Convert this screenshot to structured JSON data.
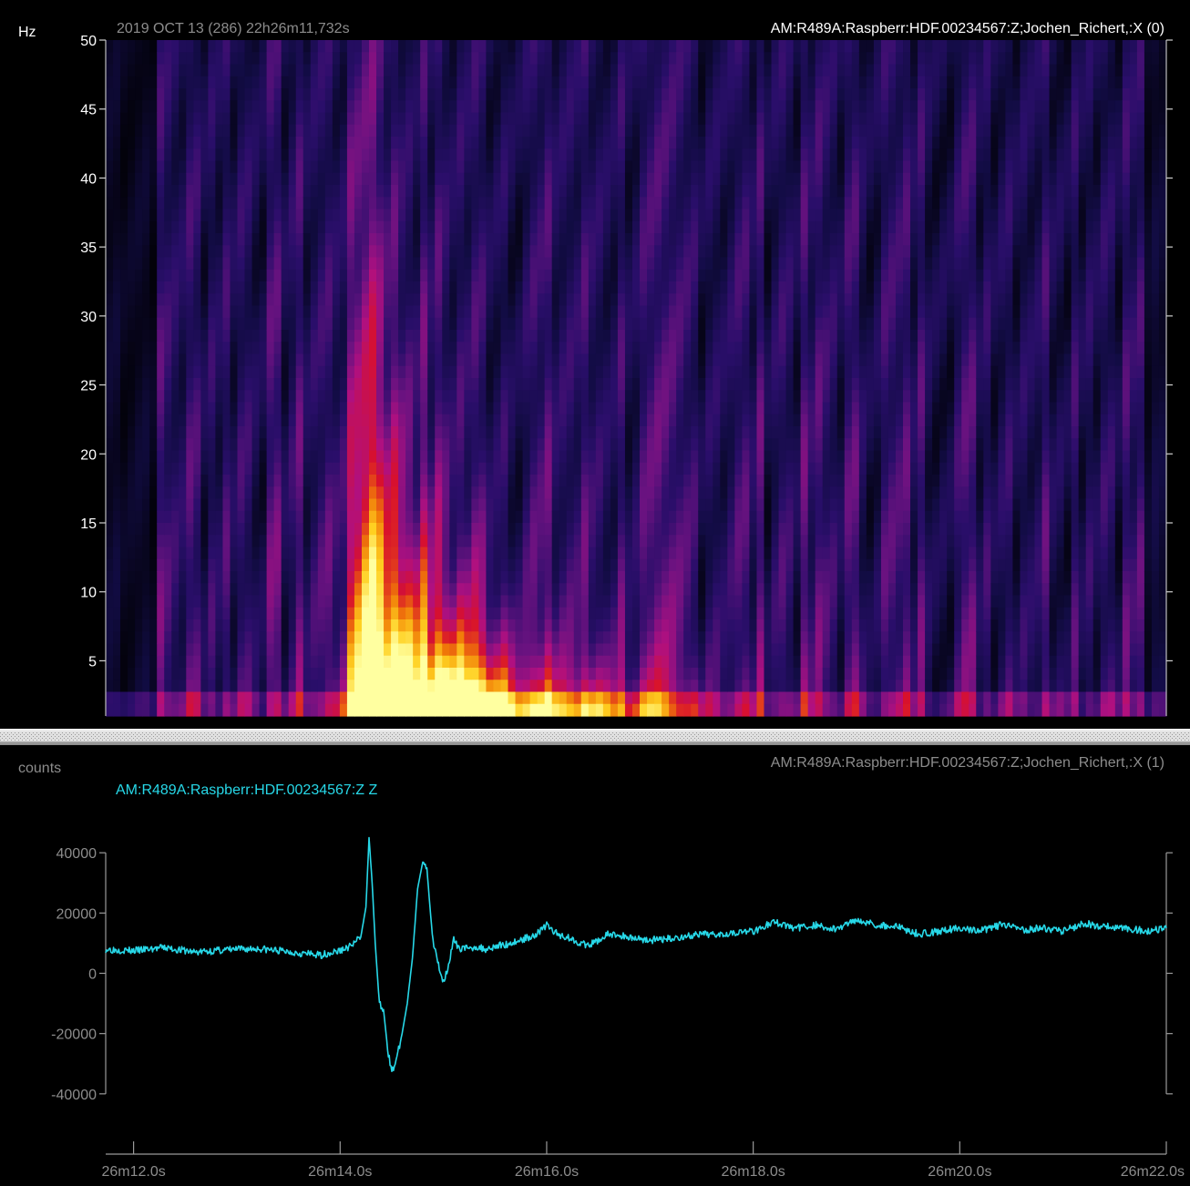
{
  "chart_data": [
    {
      "type": "heatmap",
      "panel": "spectrogram",
      "timestamp_label": "2019 OCT 13 (286)  22h26m11,732s",
      "channel_label": "AM:R489A:Raspberr:HDF.00234567:Z;Jochen_Richert,:X (0)",
      "ylabel": "Hz",
      "ylim": [
        1,
        50
      ],
      "xlim": [
        11.73,
        22.0
      ],
      "yticks": [
        {
          "value": 5,
          "label": "5"
        },
        {
          "value": 10,
          "label": "10"
        },
        {
          "value": 15,
          "label": "15"
        },
        {
          "value": 20,
          "label": "20"
        },
        {
          "value": 25,
          "label": "25"
        },
        {
          "value": 30,
          "label": "30"
        },
        {
          "value": 35,
          "label": "35"
        },
        {
          "value": 40,
          "label": "40"
        },
        {
          "value": 45,
          "label": "45"
        },
        {
          "value": 50,
          "label": "50"
        }
      ],
      "colormap": [
        "#000000",
        "#120c44",
        "#2a0e6a",
        "#6a1280",
        "#b01080",
        "#d8102c",
        "#f07a08",
        "#ffd020",
        "#ffffa0"
      ],
      "background_color": "#06101a",
      "hotspots": [
        {
          "t": 14.28,
          "t_width": 0.16,
          "f_top": 35,
          "intensity": 0.55
        },
        {
          "t": 14.5,
          "t_width": 0.4,
          "f_top": 12,
          "intensity": 0.9
        },
        {
          "t": 15.15,
          "t_width": 0.5,
          "f_top": 5,
          "intensity": 1.0
        },
        {
          "t": 16.2,
          "t_width": 1.2,
          "f_top": 3,
          "intensity": 0.55
        }
      ]
    },
    {
      "type": "line",
      "panel": "waveform",
      "ylabel": "counts",
      "channel_label": "AM:R489A:Raspberr:HDF.00234567:Z;Jochen_Richert,:X (1)",
      "trace_label": "AM:R489A:Raspberr:HDF.00234567:Z Z",
      "ylim": [
        -60000,
        60000
      ],
      "xlim": [
        11.73,
        22.0
      ],
      "line_color": "#27d8e8",
      "yticks": [
        {
          "value": 40000,
          "label": "40000"
        },
        {
          "value": 20000,
          "label": "20000"
        },
        {
          "value": 0,
          "label": "0"
        },
        {
          "value": -20000,
          "label": "-20000"
        },
        {
          "value": -40000,
          "label": "-40000"
        }
      ],
      "xticks": [
        {
          "value": 12.0,
          "label": "26m12.0s"
        },
        {
          "value": 14.0,
          "label": "26m14.0s"
        },
        {
          "value": 16.0,
          "label": "26m16.0s"
        },
        {
          "value": 18.0,
          "label": "26m18.0s"
        },
        {
          "value": 20.0,
          "label": "26m20.0s"
        },
        {
          "value": 22.0,
          "label": "26m22.0s"
        }
      ],
      "series": [
        {
          "x": [
            11.73,
            12.0,
            12.3,
            12.6,
            12.9,
            13.2,
            13.5,
            13.8,
            14.0,
            14.1,
            14.2,
            14.25,
            14.28,
            14.31,
            14.34,
            14.38,
            14.42,
            14.46,
            14.5,
            14.55,
            14.6,
            14.65,
            14.7,
            14.75,
            14.8,
            14.84,
            14.87,
            14.9,
            14.93,
            14.96,
            15.0,
            15.05,
            15.1,
            15.15,
            15.2,
            15.25,
            15.3,
            15.4,
            15.5,
            15.6,
            15.75,
            15.9,
            16.0,
            16.1,
            16.2,
            16.4,
            16.6,
            16.8,
            17.0,
            17.2,
            17.4,
            17.6,
            17.8,
            18.0,
            18.2,
            18.4,
            18.6,
            18.8,
            19.0,
            19.2,
            19.4,
            19.6,
            19.8,
            20.0,
            20.2,
            20.4,
            20.6,
            20.8,
            21.0,
            21.2,
            21.4,
            21.6,
            21.8,
            22.0
          ],
          "y": [
            8000,
            7500,
            8500,
            7000,
            7800,
            8200,
            7200,
            6000,
            7500,
            9000,
            12000,
            22000,
            45000,
            30000,
            10000,
            -10000,
            -12000,
            -25000,
            -33000,
            -28000,
            -20000,
            -10000,
            5000,
            28000,
            37000,
            35000,
            22000,
            10000,
            6000,
            2000,
            -3000,
            3000,
            11000,
            8000,
            9000,
            7500,
            9000,
            8000,
            9000,
            9500,
            11000,
            13000,
            16000,
            13000,
            12000,
            9000,
            13000,
            12000,
            11000,
            11500,
            12500,
            13000,
            13500,
            14000,
            17000,
            15000,
            16000,
            14500,
            18000,
            16000,
            15500,
            13000,
            14000,
            15000,
            14000,
            16000,
            14500,
            15000,
            14000,
            16500,
            15500,
            15000,
            14000,
            15000
          ]
        }
      ]
    }
  ]
}
